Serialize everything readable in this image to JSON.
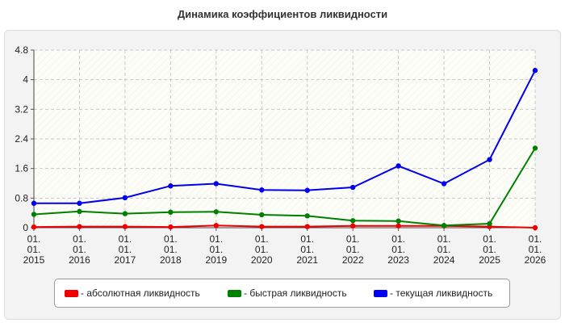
{
  "title": "Динамика коэффициентов ликвидности",
  "colors": {
    "absolute": "#ee0000",
    "quick": "#008000",
    "current": "#0000ee"
  },
  "legend": [
    {
      "label": "- абсолютная ликвидность",
      "color": "#ee0000"
    },
    {
      "label": "- быстрая ликвидность",
      "color": "#008000"
    },
    {
      "label": "- текущая ликвидность",
      "color": "#0000ee"
    }
  ],
  "chart_data": {
    "type": "line",
    "title": "Динамика коэффициентов ликвидности",
    "x": [
      "01.01.2015",
      "01.01.2016",
      "01.01.2017",
      "01.01.2018",
      "01.01.2019",
      "01.01.2020",
      "01.01.2021",
      "01.01.2022",
      "01.01.2023",
      "01.01.2024",
      "01.01.2025",
      "01.01.2026"
    ],
    "x_tick_lines": [
      [
        "01.",
        "01.",
        "2015"
      ],
      [
        "01.",
        "01.",
        "2016"
      ],
      [
        "01.",
        "01.",
        "2017"
      ],
      [
        "01.",
        "01.",
        "2018"
      ],
      [
        "01.",
        "01.",
        "2019"
      ],
      [
        "01.",
        "01.",
        "2020"
      ],
      [
        "01.",
        "01.",
        "2021"
      ],
      [
        "01.",
        "01.",
        "2022"
      ],
      [
        "01.",
        "01.",
        "2023"
      ],
      [
        "01.",
        "01.",
        "2024"
      ],
      [
        "01.",
        "01.",
        "2025"
      ],
      [
        "01.",
        "01.",
        "2026"
      ]
    ],
    "y_ticks": [
      "0",
      "0.8",
      "1.6",
      "2.4",
      "3.2",
      "4",
      "4.8"
    ],
    "ylim": [
      0,
      4.8
    ],
    "grid": true,
    "legend_position": "bottom",
    "series": [
      {
        "name": "- абсолютная ликвидность",
        "color": "#ee0000",
        "values": [
          0.02,
          0.03,
          0.03,
          0.02,
          0.06,
          0.03,
          0.03,
          0.05,
          0.05,
          0.05,
          0.03,
          0.0
        ]
      },
      {
        "name": "- быстрая ликвидность",
        "color": "#008000",
        "values": [
          0.36,
          0.44,
          0.38,
          0.42,
          0.43,
          0.35,
          0.32,
          0.19,
          0.18,
          0.06,
          0.11,
          2.15
        ]
      },
      {
        "name": "- текущая ликвидность",
        "color": "#0000ee",
        "values": [
          0.66,
          0.66,
          0.81,
          1.13,
          1.19,
          1.02,
          1.01,
          1.09,
          1.67,
          1.19,
          1.84,
          4.25
        ]
      }
    ]
  }
}
